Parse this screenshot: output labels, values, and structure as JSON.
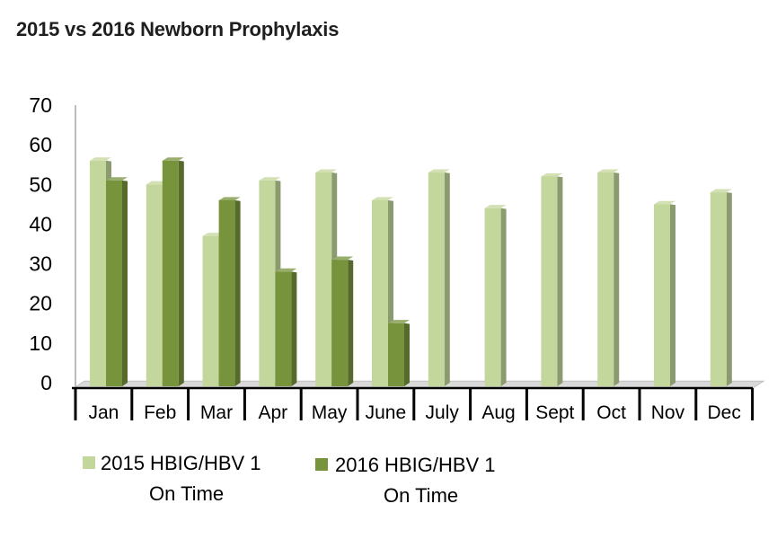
{
  "chart_data": {
    "type": "bar",
    "title": "2015 vs 2016 Newborn Prophylaxis",
    "xlabel": "",
    "ylabel": "",
    "categories": [
      "Jan",
      "Feb",
      "Mar",
      "Apr",
      "May",
      "June",
      "July",
      "Aug",
      "Sept",
      "Oct",
      "Nov",
      "Dec"
    ],
    "series": [
      {
        "name": "2015 HBIG/HBV 1 On Time",
        "legend_lines": [
          "2015 HBIG/HBV 1",
          "On Time"
        ],
        "color": "#c3d69b",
        "values": [
          56,
          50,
          37,
          51,
          53,
          46,
          53,
          44,
          52,
          53,
          45,
          48
        ]
      },
      {
        "name": "2016 HBIG/HBV 1 On Time",
        "legend_lines": [
          "2016 HBIG/HBV 1",
          "On Time"
        ],
        "color": "#77933c",
        "values": [
          51,
          56,
          46,
          28,
          31,
          15,
          null,
          null,
          null,
          null,
          null,
          null
        ]
      }
    ],
    "ylim": [
      0,
      70
    ],
    "yticks": [
      0,
      10,
      20,
      30,
      40,
      50,
      60,
      70
    ],
    "grid": false,
    "legend_position": "bottom",
    "style": "3d-column"
  }
}
